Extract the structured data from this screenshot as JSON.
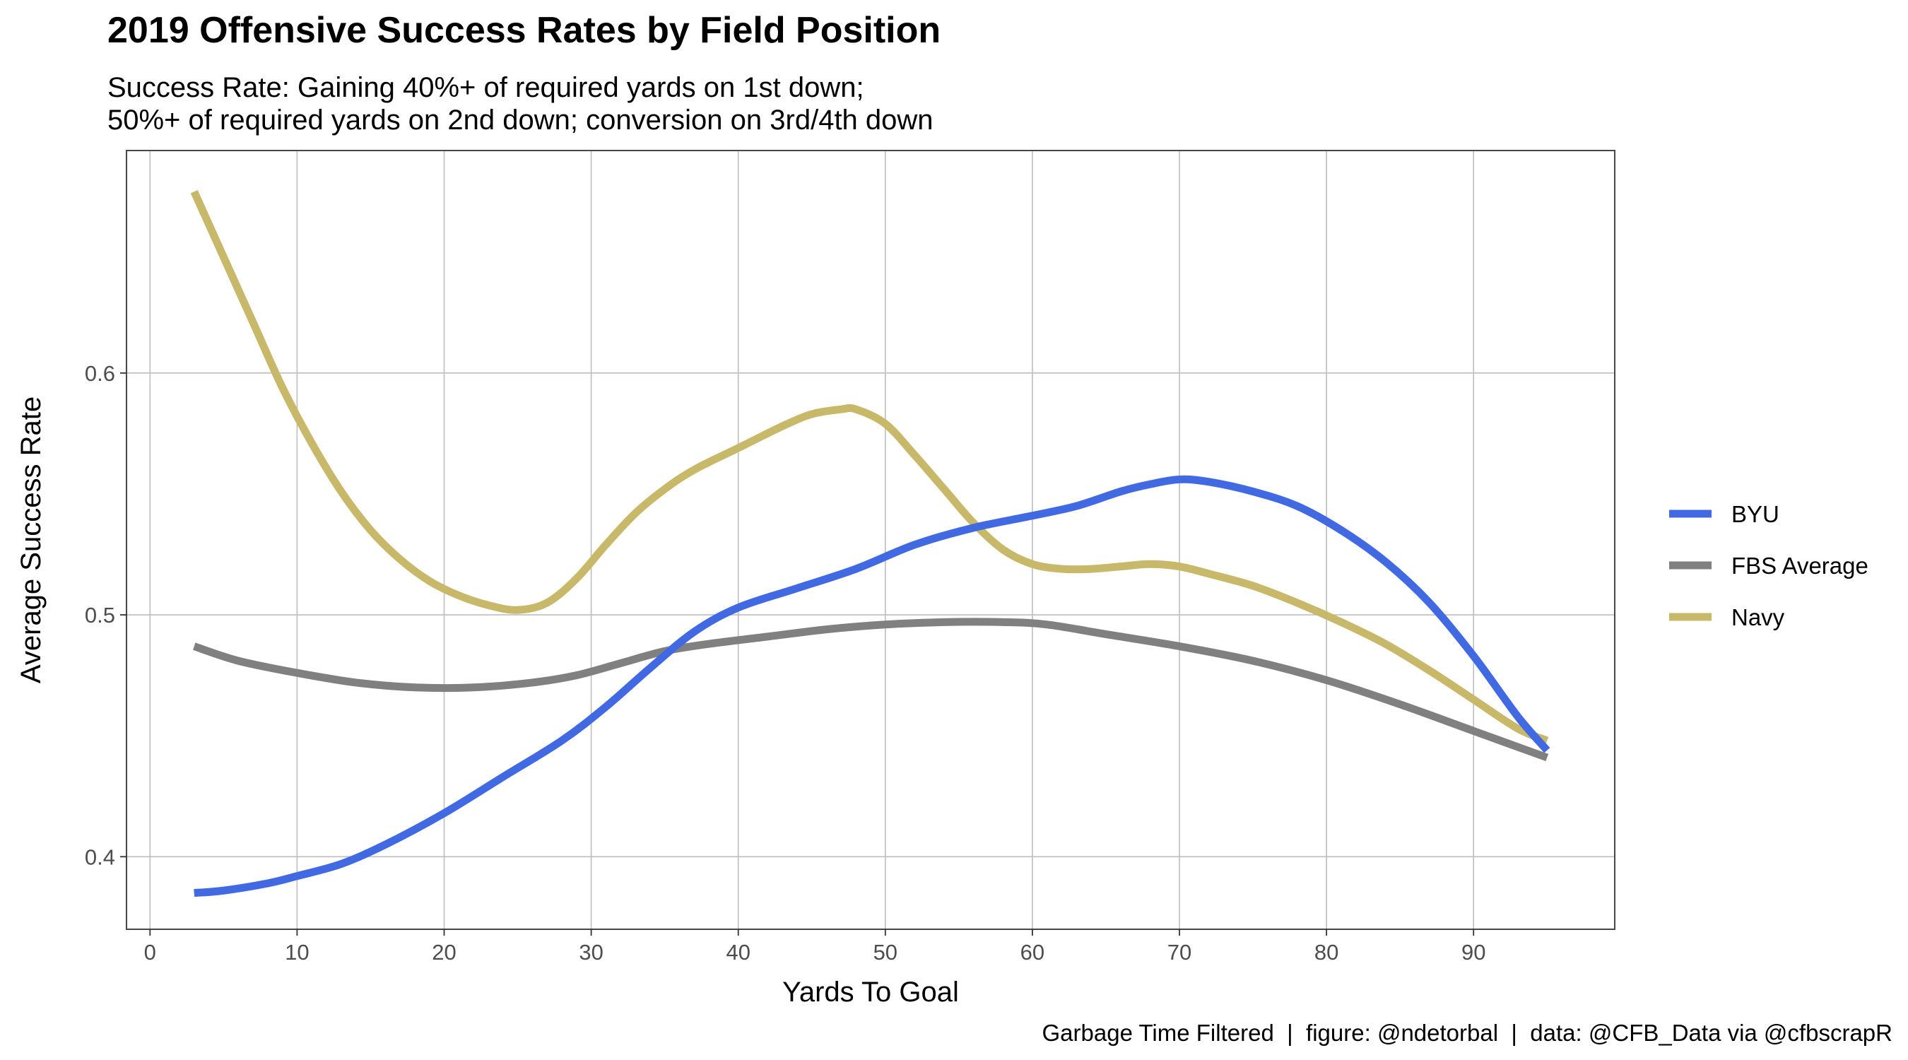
{
  "chart_data": {
    "type": "line",
    "title": "2019 Offensive Success Rates by Field Position",
    "subtitle_lines": [
      "Success Rate: Gaining 40%+ of required yards on 1st down;",
      "50%+ of required yards on 2nd down; conversion on 3rd/4th down"
    ],
    "xlabel": "Yards To Goal",
    "ylabel": "Average Success Rate",
    "caption": "Garbage Time Filtered  |  figure: @ndetorbal  |  data: @CFB_Data via @cfbscrapR",
    "xlim": [
      -1.6,
      99.6
    ],
    "ylim": [
      0.37,
      0.692
    ],
    "x_ticks": [
      0,
      10,
      20,
      30,
      40,
      50,
      60,
      70,
      80,
      90
    ],
    "x_tick_labels": [
      "0",
      "10",
      "20",
      "30",
      "40",
      "50",
      "60",
      "70",
      "80",
      "90"
    ],
    "y_ticks": [
      0.4,
      0.5,
      0.6
    ],
    "y_tick_labels": [
      "0.4",
      "0.5",
      "0.6"
    ],
    "grid": true,
    "legend_position": "right",
    "series": [
      {
        "name": "BYU",
        "color": "#4169e1",
        "x": [
          3,
          5,
          8,
          10,
          13,
          16,
          20,
          24,
          28,
          31,
          34,
          37,
          40,
          44,
          48,
          52,
          56,
          60,
          63,
          66,
          68,
          70,
          72,
          75,
          78,
          81,
          84,
          87,
          90,
          93,
          95
        ],
        "y": [
          0.385,
          0.386,
          0.389,
          0.392,
          0.397,
          0.405,
          0.418,
          0.433,
          0.448,
          0.462,
          0.478,
          0.493,
          0.503,
          0.511,
          0.519,
          0.529,
          0.536,
          0.541,
          0.545,
          0.551,
          0.554,
          0.556,
          0.555,
          0.551,
          0.545,
          0.535,
          0.522,
          0.505,
          0.483,
          0.458,
          0.444
        ]
      },
      {
        "name": "FBS Average",
        "color": "#808080",
        "x": [
          3,
          6,
          10,
          14,
          18,
          22,
          26,
          29,
          32,
          35,
          38,
          42,
          46,
          50,
          54,
          58,
          61,
          65,
          70,
          75,
          80,
          85,
          90,
          95
        ],
        "y": [
          0.487,
          0.481,
          0.476,
          0.472,
          0.47,
          0.47,
          0.472,
          0.475,
          0.48,
          0.485,
          0.488,
          0.491,
          0.494,
          0.496,
          0.497,
          0.497,
          0.496,
          0.492,
          0.487,
          0.481,
          0.473,
          0.463,
          0.452,
          0.441
        ]
      },
      {
        "name": "Navy",
        "color": "#c8b96a",
        "x": [
          3,
          5,
          7,
          9,
          11,
          13,
          15,
          17,
          19,
          21,
          23,
          25,
          27,
          29,
          31,
          33,
          35,
          37,
          40,
          43,
          45,
          47,
          48,
          50,
          52,
          54,
          56,
          58,
          60,
          62,
          64,
          66,
          68,
          70,
          72,
          75,
          78,
          81,
          84,
          87,
          90,
          93,
          95
        ],
        "y": [
          0.675,
          0.648,
          0.621,
          0.594,
          0.571,
          0.551,
          0.535,
          0.523,
          0.514,
          0.508,
          0.504,
          0.502,
          0.505,
          0.515,
          0.529,
          0.542,
          0.552,
          0.56,
          0.569,
          0.578,
          0.583,
          0.585,
          0.585,
          0.579,
          0.566,
          0.552,
          0.538,
          0.527,
          0.521,
          0.519,
          0.519,
          0.52,
          0.521,
          0.52,
          0.517,
          0.512,
          0.505,
          0.497,
          0.488,
          0.477,
          0.465,
          0.453,
          0.448
        ]
      }
    ]
  }
}
